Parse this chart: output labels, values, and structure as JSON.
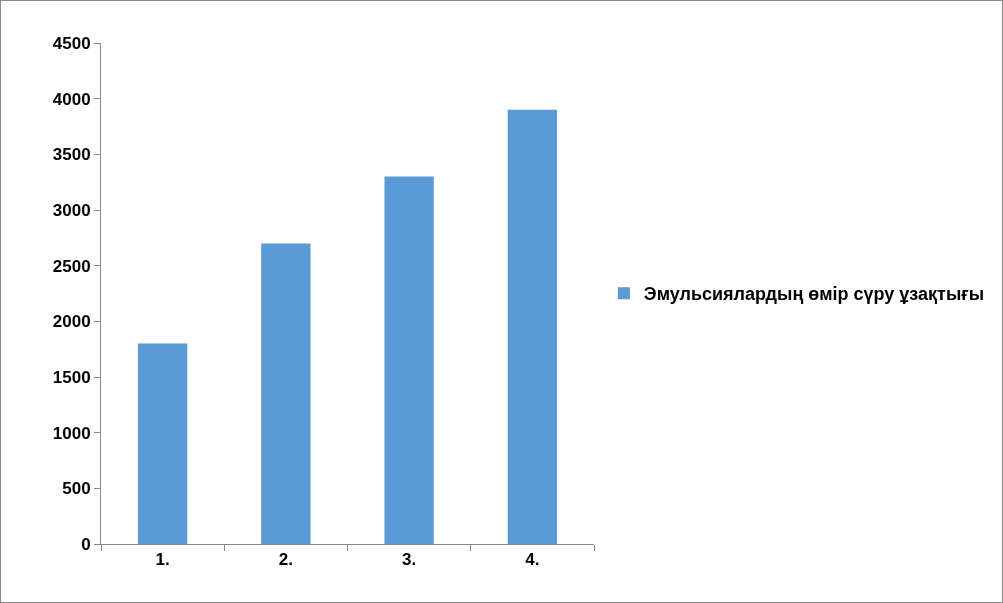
{
  "chart_data": {
    "type": "bar",
    "categories": [
      "1.",
      "2.",
      "3.",
      "4."
    ],
    "series": [
      {
        "name": "Эмульсиялардың өмір сүру ұзақтығы",
        "color": "#5b9bd5",
        "values": [
          1800,
          2700,
          3300,
          3900
        ]
      }
    ],
    "ylim": [
      0,
      4500
    ],
    "yticks": [
      0,
      500,
      1000,
      1500,
      2000,
      2500,
      3000,
      3500,
      4000,
      4500
    ],
    "grid": false,
    "legend": "right"
  }
}
